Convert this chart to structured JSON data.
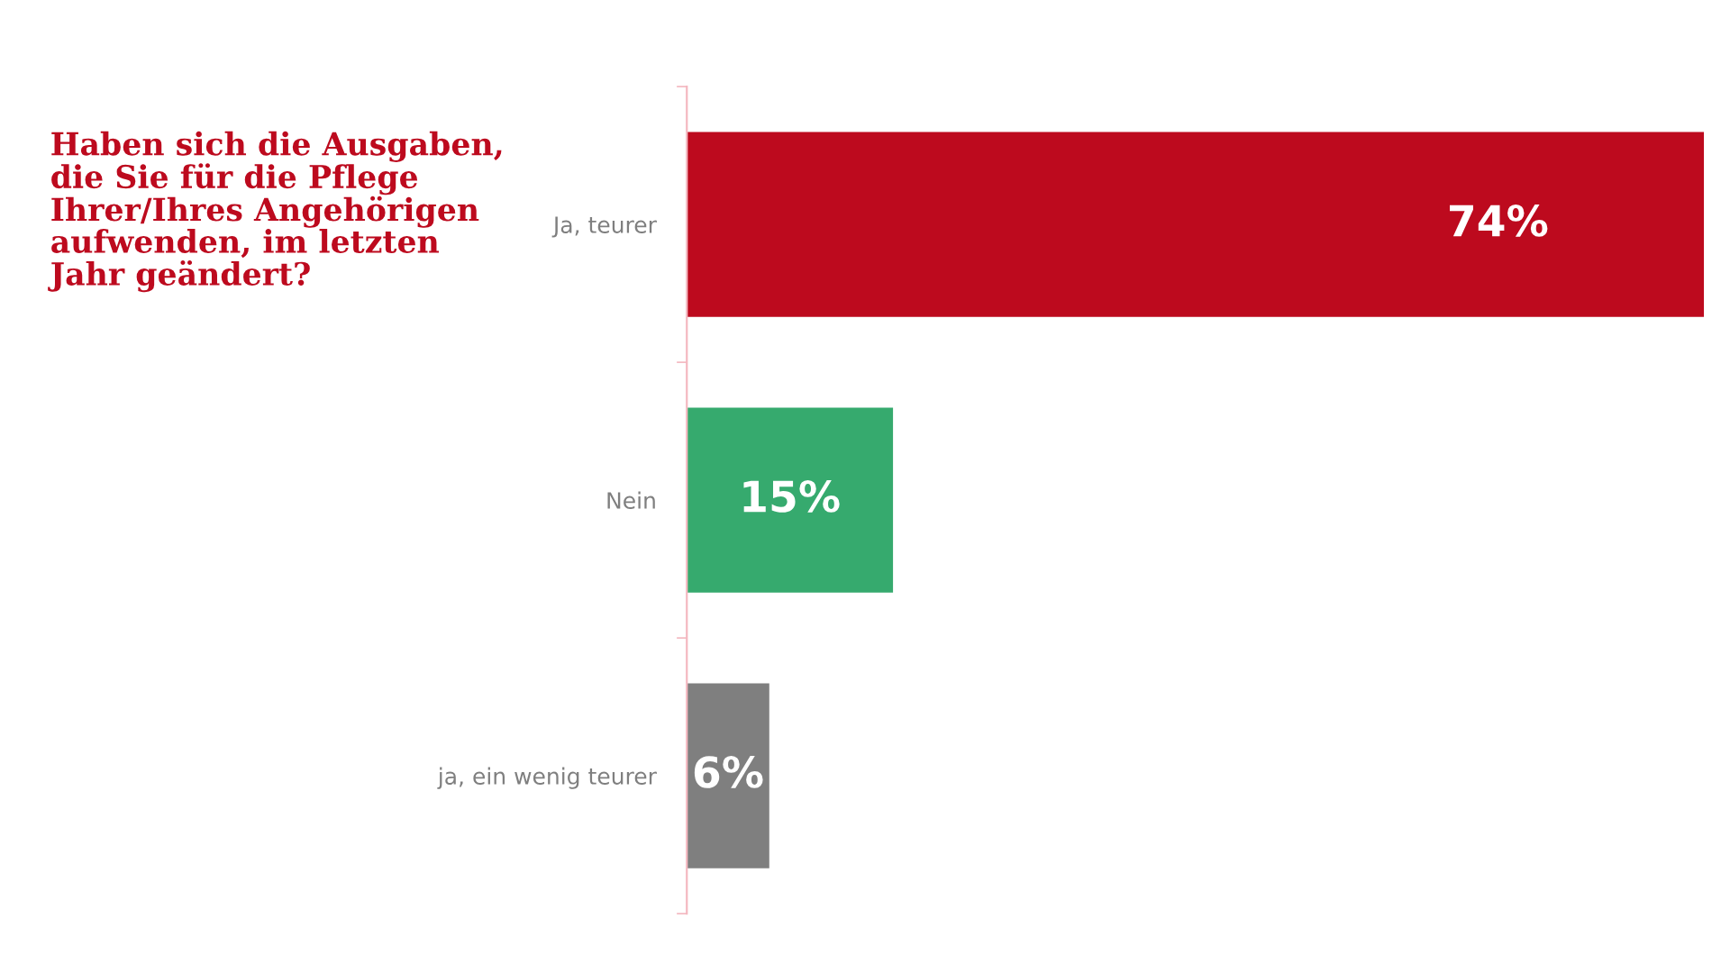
{
  "chart_data": {
    "type": "bar",
    "orientation": "horizontal",
    "title": "Haben sich die Ausgaben,\ndie Sie für die Pflege\nIhrer/Ihres Angehörigen\naufwenden, im letzten\nJahr geändert?",
    "categories": [
      "Ja, teurer",
      "Nein",
      "ja, ein wenig teurer"
    ],
    "values": [
      74,
      15,
      6
    ],
    "colors": [
      "#bd0a1e",
      "#36aa6e",
      "#7f7f7f"
    ],
    "value_labels": [
      "74%",
      "15%",
      "6%"
    ],
    "grid": false,
    "legend": false
  }
}
